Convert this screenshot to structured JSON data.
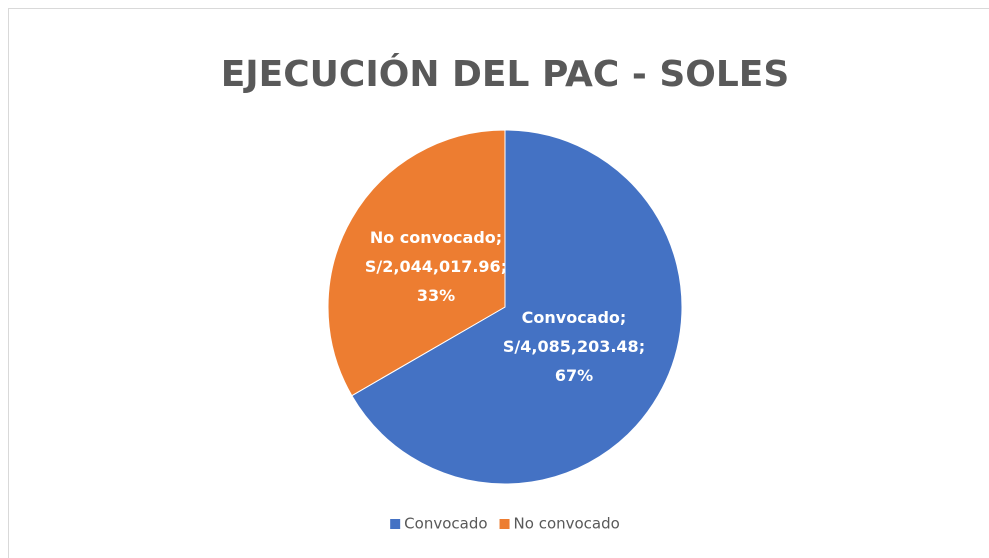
{
  "chart_data": {
    "type": "pie",
    "title": "EJECUCIÓN DEL PAC - SOLES",
    "categories": [
      "Convocado",
      "No convocado"
    ],
    "values": [
      4085203.48,
      2044017.96
    ],
    "value_labels": [
      "S/4,085,203.48",
      "S/2,044,017.96"
    ],
    "percentages": [
      67,
      33
    ],
    "percentage_labels": [
      "67%",
      "33%"
    ],
    "label_separator": ";",
    "colors": [
      "#4472c4",
      "#ed7d31"
    ],
    "legend": "bottom"
  }
}
